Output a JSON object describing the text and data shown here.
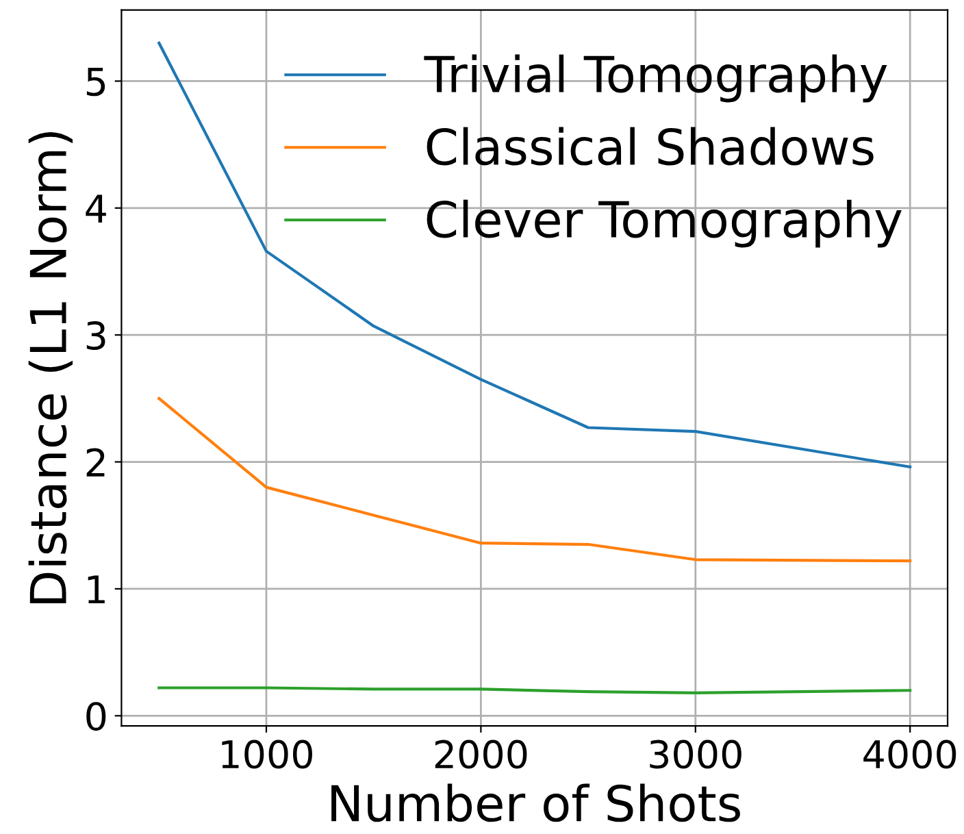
{
  "chart_data": {
    "type": "line",
    "xlabel": "Number of Shots",
    "ylabel": "Distance (L1 Norm)",
    "x": [
      500,
      1000,
      1500,
      2000,
      2500,
      3000,
      4000
    ],
    "series": [
      {
        "name": "Trivial Tomography",
        "color": "#1f77b4",
        "values": [
          5.3,
          3.66,
          3.07,
          2.65,
          2.27,
          2.24,
          1.96
        ]
      },
      {
        "name": "Classical Shadows",
        "color": "#ff7f0e",
        "values": [
          2.5,
          1.8,
          1.58,
          1.36,
          1.35,
          1.23,
          1.22
        ]
      },
      {
        "name": "Clever Tomography",
        "color": "#2ca02c",
        "values": [
          0.22,
          0.22,
          0.21,
          0.21,
          0.19,
          0.18,
          0.2
        ]
      }
    ],
    "xlim": [
      325,
      4175
    ],
    "ylim": [
      -0.08,
      5.56
    ],
    "xticks": [
      1000,
      2000,
      3000,
      4000
    ],
    "yticks": [
      0,
      1,
      2,
      3,
      4,
      5
    ],
    "grid": true,
    "legend": "top right",
    "marker": "none",
    "line_style": "solid"
  }
}
